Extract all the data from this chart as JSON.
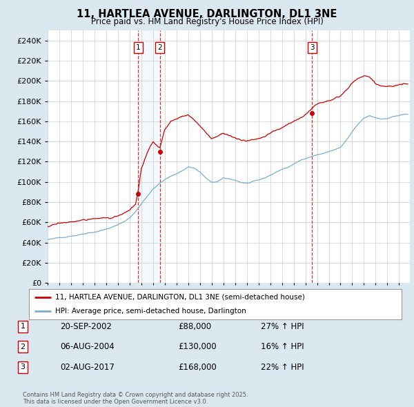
{
  "title": "11, HARTLEA AVENUE, DARLINGTON, DL1 3NE",
  "subtitle": "Price paid vs. HM Land Registry's House Price Index (HPI)",
  "ylim": [
    0,
    250000
  ],
  "yticks": [
    0,
    20000,
    40000,
    60000,
    80000,
    100000,
    120000,
    140000,
    160000,
    180000,
    200000,
    220000,
    240000
  ],
  "xlim_start": 1995.0,
  "xlim_end": 2025.92,
  "sales": [
    {
      "num": 1,
      "date_val": 2002.72,
      "price": 88000,
      "pct": "27%",
      "date_str": "20-SEP-2002"
    },
    {
      "num": 2,
      "date_val": 2004.59,
      "price": 130000,
      "pct": "16%",
      "date_str": "06-AUG-2004"
    },
    {
      "num": 3,
      "date_val": 2017.58,
      "price": 168000,
      "pct": "22%",
      "date_str": "02-AUG-2017"
    }
  ],
  "legend_label_red": "11, HARTLEA AVENUE, DARLINGTON, DL1 3NE (semi-detached house)",
  "legend_label_blue": "HPI: Average price, semi-detached house, Darlington",
  "footer": "Contains HM Land Registry data © Crown copyright and database right 2025.\nThis data is licensed under the Open Government Licence v3.0.",
  "red_color": "#cc0000",
  "blue_color": "#7aadd4",
  "shade_color": "#d0e4f5",
  "bg_color": "#dce8f0",
  "plot_bg": "#ffffff",
  "grid_color": "#cccccc",
  "hpi_anchors": [
    [
      1995.0,
      43000
    ],
    [
      1995.5,
      43500
    ],
    [
      1996.0,
      44500
    ],
    [
      1996.5,
      45500
    ],
    [
      1997.0,
      47000
    ],
    [
      1997.5,
      48000
    ],
    [
      1998.0,
      49500
    ],
    [
      1998.5,
      51000
    ],
    [
      1999.0,
      52000
    ],
    [
      1999.5,
      53500
    ],
    [
      2000.0,
      55000
    ],
    [
      2000.5,
      57000
    ],
    [
      2001.0,
      59000
    ],
    [
      2001.5,
      62000
    ],
    [
      2002.0,
      66000
    ],
    [
      2002.5,
      72000
    ],
    [
      2003.0,
      80000
    ],
    [
      2003.5,
      88000
    ],
    [
      2004.0,
      95000
    ],
    [
      2004.5,
      100000
    ],
    [
      2005.0,
      104000
    ],
    [
      2005.5,
      107000
    ],
    [
      2006.0,
      110000
    ],
    [
      2006.5,
      113000
    ],
    [
      2007.0,
      117000
    ],
    [
      2007.5,
      116000
    ],
    [
      2008.0,
      112000
    ],
    [
      2008.5,
      106000
    ],
    [
      2009.0,
      101000
    ],
    [
      2009.5,
      102000
    ],
    [
      2010.0,
      105000
    ],
    [
      2010.5,
      104000
    ],
    [
      2011.0,
      103000
    ],
    [
      2011.5,
      101000
    ],
    [
      2012.0,
      100000
    ],
    [
      2012.5,
      101000
    ],
    [
      2013.0,
      102000
    ],
    [
      2013.5,
      104000
    ],
    [
      2014.0,
      107000
    ],
    [
      2014.5,
      110000
    ],
    [
      2015.0,
      113000
    ],
    [
      2015.5,
      115000
    ],
    [
      2016.0,
      118000
    ],
    [
      2016.5,
      121000
    ],
    [
      2017.0,
      124000
    ],
    [
      2017.5,
      126000
    ],
    [
      2018.0,
      128000
    ],
    [
      2018.5,
      129000
    ],
    [
      2019.0,
      131000
    ],
    [
      2019.5,
      133000
    ],
    [
      2020.0,
      135000
    ],
    [
      2020.5,
      142000
    ],
    [
      2021.0,
      150000
    ],
    [
      2021.5,
      157000
    ],
    [
      2022.0,
      163000
    ],
    [
      2022.5,
      165000
    ],
    [
      2023.0,
      163000
    ],
    [
      2023.5,
      162000
    ],
    [
      2024.0,
      163000
    ],
    [
      2024.5,
      165000
    ],
    [
      2025.0,
      166000
    ],
    [
      2025.5,
      167000
    ]
  ],
  "red_anchors": [
    [
      1995.0,
      56000
    ],
    [
      1995.5,
      57000
    ],
    [
      1996.0,
      58000
    ],
    [
      1996.5,
      59000
    ],
    [
      1997.0,
      60000
    ],
    [
      1997.5,
      61000
    ],
    [
      1998.0,
      61500
    ],
    [
      1998.5,
      62000
    ],
    [
      1999.0,
      62500
    ],
    [
      1999.5,
      63000
    ],
    [
      2000.0,
      63500
    ],
    [
      2000.5,
      64500
    ],
    [
      2001.0,
      65500
    ],
    [
      2001.5,
      67000
    ],
    [
      2002.0,
      70000
    ],
    [
      2002.5,
      76000
    ],
    [
      2002.72,
      88000
    ],
    [
      2003.0,
      110000
    ],
    [
      2003.5,
      125000
    ],
    [
      2004.0,
      135000
    ],
    [
      2004.59,
      130000
    ],
    [
      2005.0,
      148000
    ],
    [
      2005.5,
      155000
    ],
    [
      2006.0,
      158000
    ],
    [
      2006.5,
      161000
    ],
    [
      2007.0,
      163000
    ],
    [
      2007.5,
      158000
    ],
    [
      2008.0,
      151000
    ],
    [
      2008.5,
      144000
    ],
    [
      2009.0,
      138000
    ],
    [
      2009.5,
      140000
    ],
    [
      2010.0,
      144000
    ],
    [
      2010.5,
      142000
    ],
    [
      2011.0,
      140000
    ],
    [
      2011.5,
      137000
    ],
    [
      2012.0,
      136000
    ],
    [
      2012.5,
      137000
    ],
    [
      2013.0,
      138000
    ],
    [
      2013.5,
      140000
    ],
    [
      2014.0,
      143000
    ],
    [
      2014.5,
      146000
    ],
    [
      2015.0,
      148000
    ],
    [
      2015.5,
      151000
    ],
    [
      2016.0,
      154000
    ],
    [
      2016.5,
      158000
    ],
    [
      2017.0,
      162000
    ],
    [
      2017.58,
      168000
    ],
    [
      2018.0,
      172000
    ],
    [
      2018.5,
      175000
    ],
    [
      2019.0,
      178000
    ],
    [
      2019.5,
      181000
    ],
    [
      2020.0,
      184000
    ],
    [
      2020.5,
      190000
    ],
    [
      2021.0,
      196000
    ],
    [
      2021.5,
      201000
    ],
    [
      2022.0,
      204000
    ],
    [
      2022.5,
      202000
    ],
    [
      2023.0,
      196000
    ],
    [
      2023.5,
      193000
    ],
    [
      2024.0,
      193000
    ],
    [
      2024.5,
      194000
    ],
    [
      2025.0,
      196000
    ],
    [
      2025.5,
      197000
    ]
  ]
}
